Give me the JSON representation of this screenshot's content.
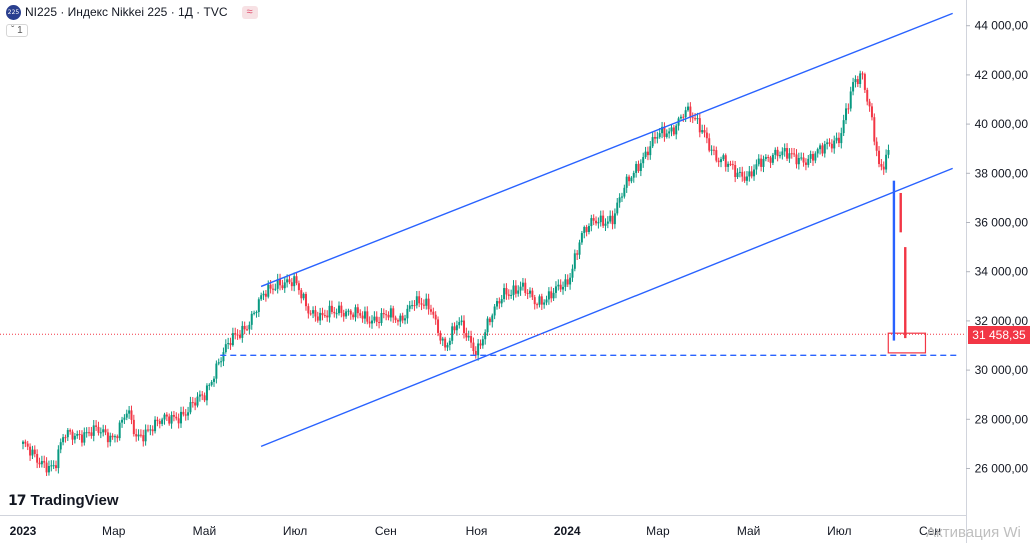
{
  "header": {
    "badge": "225",
    "title": "NI225 · Индекс Nikkei 225 · 1Д · TVC",
    "extra": "≈",
    "collapse": "ˇ 1"
  },
  "price_tag": "31 458,35",
  "logo": {
    "mark": "17",
    "text": "TradingView"
  },
  "watermark": "Активация Wi",
  "colors": {
    "up": "#089981",
    "down": "#f23645",
    "line": "#2962ff"
  },
  "chart_data": {
    "type": "candlestick",
    "ylim": [
      24000,
      45600
    ],
    "y_ticks": [
      {
        "v": 26000,
        "label": "26 000,00"
      },
      {
        "v": 28000,
        "label": "28 000,00"
      },
      {
        "v": 30000,
        "label": "30 000,00"
      },
      {
        "v": 32000,
        "label": "32 000,00"
      },
      {
        "v": 34000,
        "label": "34 000,00"
      },
      {
        "v": 36000,
        "label": "36 000,00"
      },
      {
        "v": 38000,
        "label": "38 000,00"
      },
      {
        "v": 40000,
        "label": "40 000,00"
      },
      {
        "v": 42000,
        "label": "42 000,00"
      },
      {
        "v": 44000,
        "label": "44 000,00"
      }
    ],
    "x_ticks": [
      {
        "m": 0,
        "label": "2023",
        "bold": true
      },
      {
        "m": 2,
        "label": "Мар"
      },
      {
        "m": 4,
        "label": "Май"
      },
      {
        "m": 6,
        "label": "Июл"
      },
      {
        "m": 8,
        "label": "Сен"
      },
      {
        "m": 10,
        "label": "Ноя"
      },
      {
        "m": 12,
        "label": "2024",
        "bold": true
      },
      {
        "m": 14,
        "label": "Мар"
      },
      {
        "m": 16,
        "label": "Май"
      },
      {
        "m": 18,
        "label": "Июл"
      },
      {
        "m": 20,
        "label": "Сен"
      }
    ],
    "close_path": [
      [
        0.0,
        27000
      ],
      [
        0.3,
        26300
      ],
      [
        0.7,
        26100
      ],
      [
        0.9,
        27300
      ],
      [
        1.2,
        27400
      ],
      [
        1.6,
        27500
      ],
      [
        2.0,
        27300
      ],
      [
        2.3,
        28300
      ],
      [
        2.5,
        27200
      ],
      [
        2.8,
        27700
      ],
      [
        3.2,
        28000
      ],
      [
        3.6,
        28300
      ],
      [
        4.0,
        29000
      ],
      [
        4.3,
        30300
      ],
      [
        4.6,
        31200
      ],
      [
        5.0,
        32000
      ],
      [
        5.3,
        33000
      ],
      [
        5.6,
        33600
      ],
      [
        6.0,
        33500
      ],
      [
        6.3,
        32500
      ],
      [
        6.6,
        32100
      ],
      [
        7.0,
        32500
      ],
      [
        7.3,
        32300
      ],
      [
        7.6,
        32000
      ],
      [
        8.0,
        32300
      ],
      [
        8.3,
        31900
      ],
      [
        8.6,
        32900
      ],
      [
        9.0,
        32400
      ],
      [
        9.3,
        31000
      ],
      [
        9.6,
        31900
      ],
      [
        10.0,
        30800
      ],
      [
        10.3,
        32000
      ],
      [
        10.6,
        33200
      ],
      [
        11.0,
        33300
      ],
      [
        11.3,
        32800
      ],
      [
        11.6,
        33000
      ],
      [
        12.0,
        33500
      ],
      [
        12.3,
        35500
      ],
      [
        12.6,
        36000
      ],
      [
        13.0,
        36200
      ],
      [
        13.3,
        37500
      ],
      [
        13.6,
        38500
      ],
      [
        14.0,
        39500
      ],
      [
        14.3,
        39800
      ],
      [
        14.6,
        40500
      ],
      [
        15.0,
        39800
      ],
      [
        15.3,
        38500
      ],
      [
        15.6,
        38300
      ],
      [
        16.0,
        37800
      ],
      [
        16.3,
        38500
      ],
      [
        16.6,
        38900
      ],
      [
        17.0,
        38600
      ],
      [
        17.3,
        38600
      ],
      [
        17.6,
        38900
      ],
      [
        18.0,
        39500
      ],
      [
        18.3,
        41500
      ],
      [
        18.5,
        42000
      ],
      [
        18.7,
        40500
      ],
      [
        18.9,
        38000
      ],
      [
        19.1,
        38800
      ]
    ],
    "drawings": {
      "channel_upper": [
        [
          5.25,
          33400
        ],
        [
          20.5,
          44500
        ]
      ],
      "channel_lower": [
        [
          5.25,
          26900
        ],
        [
          20.5,
          38200
        ]
      ],
      "support_level": {
        "v": 30600,
        "m": [
          4.35,
          20.6
        ]
      },
      "crash_candles": [
        {
          "m": 19.2,
          "open": 37700,
          "close": 31200,
          "color": "blue"
        },
        {
          "m": 19.35,
          "open": 37200,
          "close": 35600,
          "color": "red"
        },
        {
          "m": 19.45,
          "open": 35000,
          "close": 31300,
          "color": "red"
        }
      ],
      "highlight_range": [
        30700,
        31500
      ],
      "current_price": 31458.35
    }
  }
}
